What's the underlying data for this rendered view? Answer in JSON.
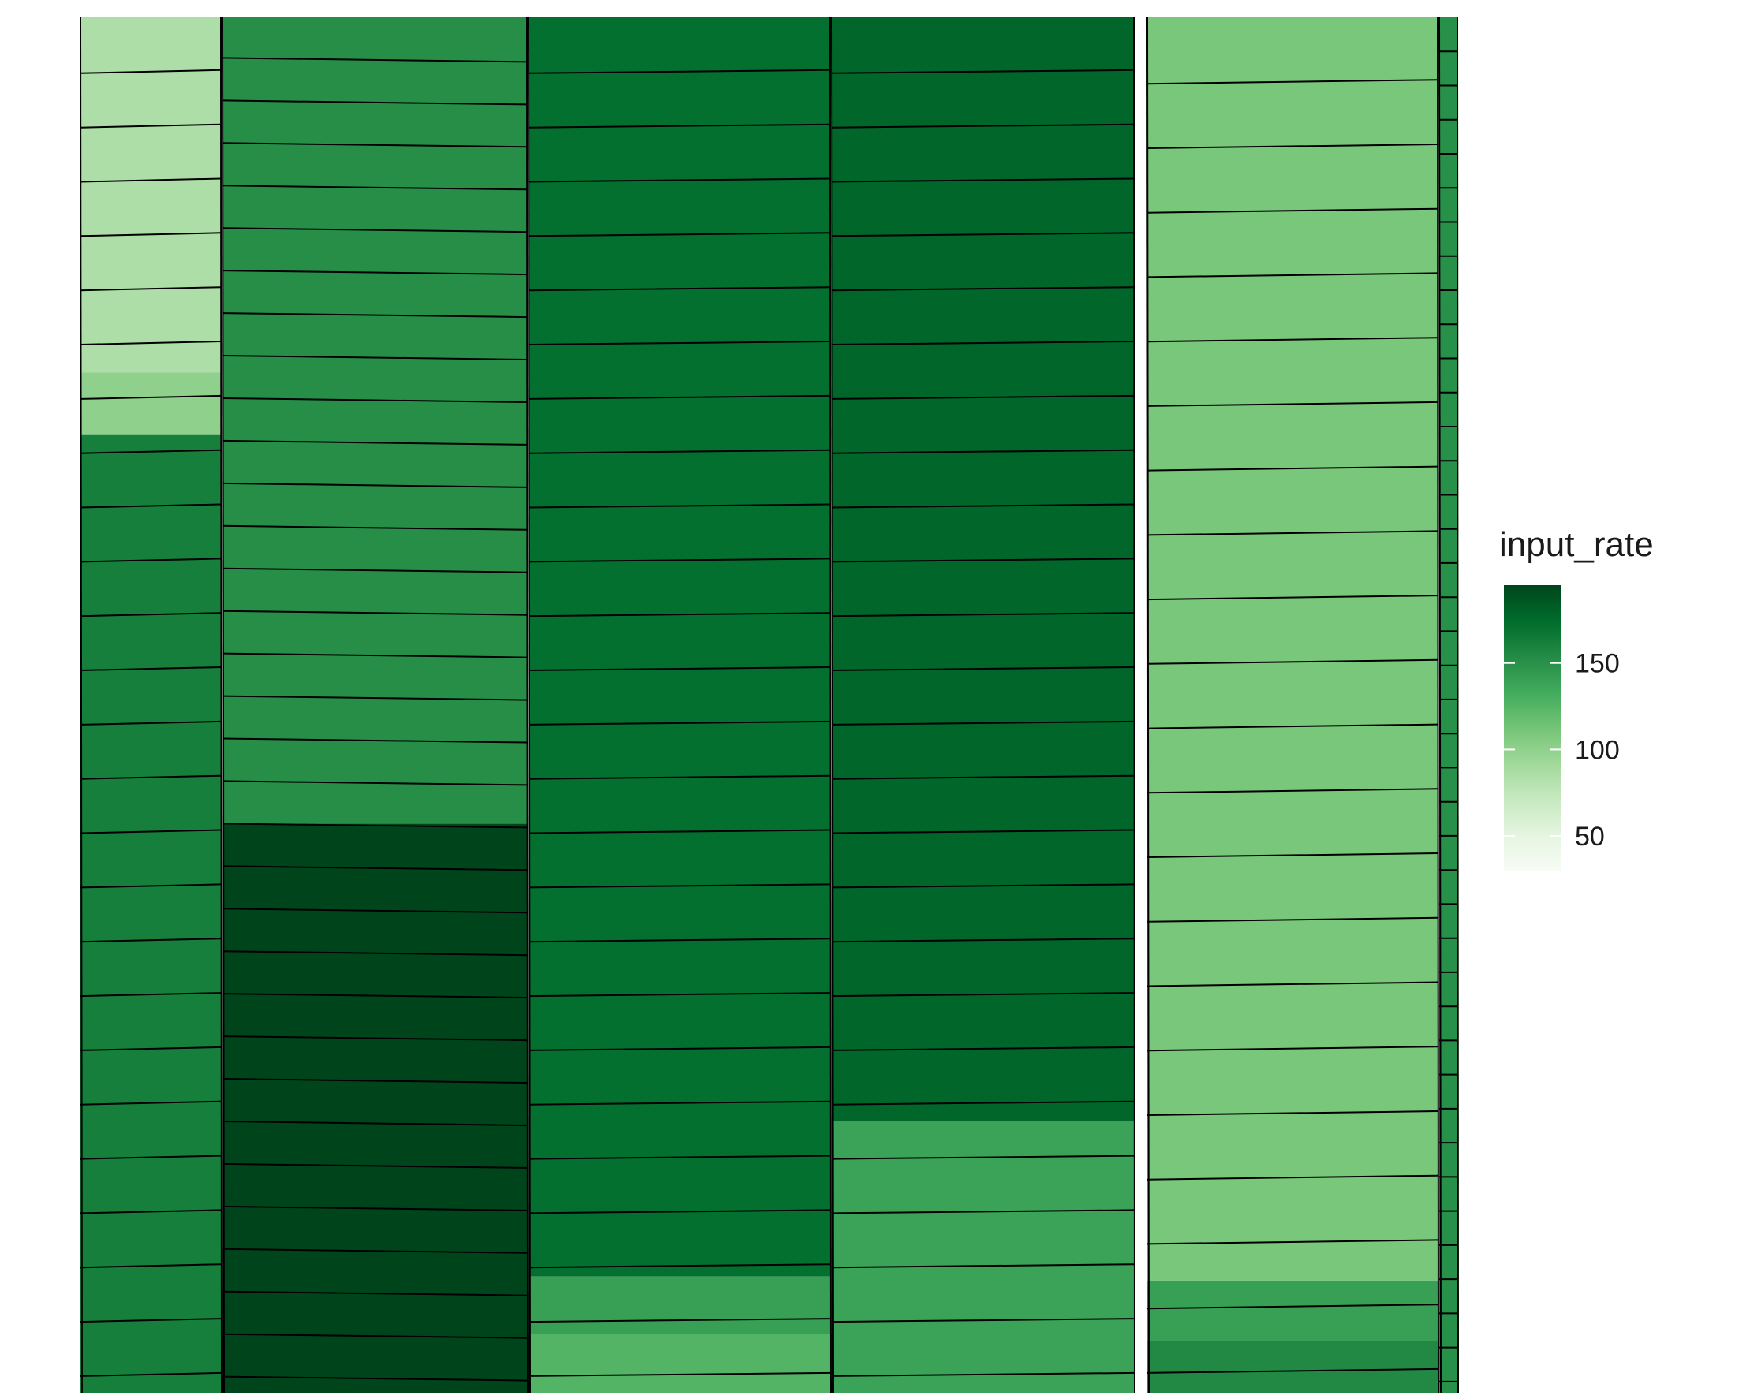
{
  "chart_data": {
    "type": "heatmap",
    "title": "",
    "xlabel": "",
    "ylabel": "",
    "axes_shown": false,
    "grid": false,
    "colorbar": {
      "title": "input_rate",
      "ticks": [
        50,
        100,
        150
      ],
      "range": [
        30,
        195
      ],
      "palette": [
        "#f7fcf5",
        "#e5f5e0",
        "#c7e9c0",
        "#a1d99b",
        "#74c476",
        "#41ab5d",
        "#238b45",
        "#006d2c",
        "#00441b"
      ],
      "legend_position": "right"
    },
    "strips": [
      {
        "name": "strip-1",
        "segments": [
          {
            "from": 0,
            "to": 0.258,
            "value": 85
          },
          {
            "from": 0.258,
            "to": 0.303,
            "value": 100
          },
          {
            "from": 0.303,
            "to": 1,
            "value": 162
          }
        ],
        "boundaries": 25
      },
      {
        "name": "strip-2",
        "segments": [
          {
            "from": 0,
            "to": 0.586,
            "value": 152
          },
          {
            "from": 0.586,
            "to": 1,
            "value": 195
          }
        ],
        "boundaries": 32
      },
      {
        "name": "strip-3",
        "segments": [
          {
            "from": 0,
            "to": 0.915,
            "value": 172
          },
          {
            "from": 0.915,
            "to": 0.957,
            "value": 140
          },
          {
            "from": 0.957,
            "to": 1,
            "value": 126
          }
        ],
        "boundaries": 25
      },
      {
        "name": "strip-4",
        "segments": [
          {
            "from": 0,
            "to": 0.802,
            "value": 178
          },
          {
            "from": 0.802,
            "to": 1,
            "value": 138
          }
        ],
        "boundaries": 25
      },
      {
        "name": "strip-5",
        "segments": [
          {
            "from": 0,
            "to": 0.918,
            "value": 110
          },
          {
            "from": 0.918,
            "to": 0.962,
            "value": 140
          },
          {
            "from": 0.962,
            "to": 1,
            "value": 155
          }
        ],
        "boundaries": 21
      },
      {
        "name": "strip-6",
        "segments": [
          {
            "from": 0,
            "to": 1,
            "value": 150
          }
        ],
        "boundaries": 40
      }
    ]
  }
}
